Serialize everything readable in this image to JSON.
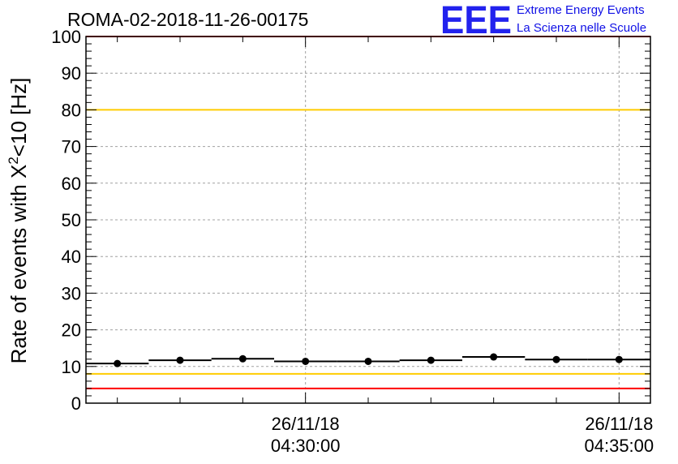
{
  "chart_data": {
    "type": "scatter",
    "title": "ROMA-02-2018-11-26-00175",
    "ylabel": {
      "main": "Rate of events with X",
      "sup": "2",
      "rest": "<10 [Hz]"
    },
    "ylim": [
      0,
      100
    ],
    "yticks": [
      0,
      10,
      20,
      30,
      40,
      50,
      60,
      70,
      80,
      90,
      100
    ],
    "xlim": [
      "04:26:30",
      "04:35:30"
    ],
    "xticks": [
      {
        "at": "04:30:00",
        "date": "26/11/18",
        "time": "04:30:00"
      },
      {
        "at": "04:35:00",
        "date": "26/11/18",
        "time": "04:35:00"
      }
    ],
    "grid": true,
    "points": [
      {
        "x": "04:27:00",
        "y": 10.8
      },
      {
        "x": "04:28:00",
        "y": 11.7
      },
      {
        "x": "04:29:00",
        "y": 12.1
      },
      {
        "x": "04:30:00",
        "y": 11.4
      },
      {
        "x": "04:31:00",
        "y": 11.4
      },
      {
        "x": "04:32:00",
        "y": 11.7
      },
      {
        "x": "04:33:00",
        "y": 12.6
      },
      {
        "x": "04:34:00",
        "y": 11.9
      },
      {
        "x": "04:35:00",
        "y": 11.9
      }
    ],
    "bin_width_min": 1,
    "reference_lines": [
      {
        "y": 100,
        "color": "#ff0000"
      },
      {
        "y": 80,
        "color": "#ffcc00"
      },
      {
        "y": 8,
        "color": "#ffcc00"
      },
      {
        "y": 4,
        "color": "#ff0000"
      }
    ]
  },
  "logo": {
    "mark": "EEE",
    "line1": "Extreme Energy Events",
    "line2": "La Scienza nelle Scuole",
    "color": "#1010e6"
  }
}
